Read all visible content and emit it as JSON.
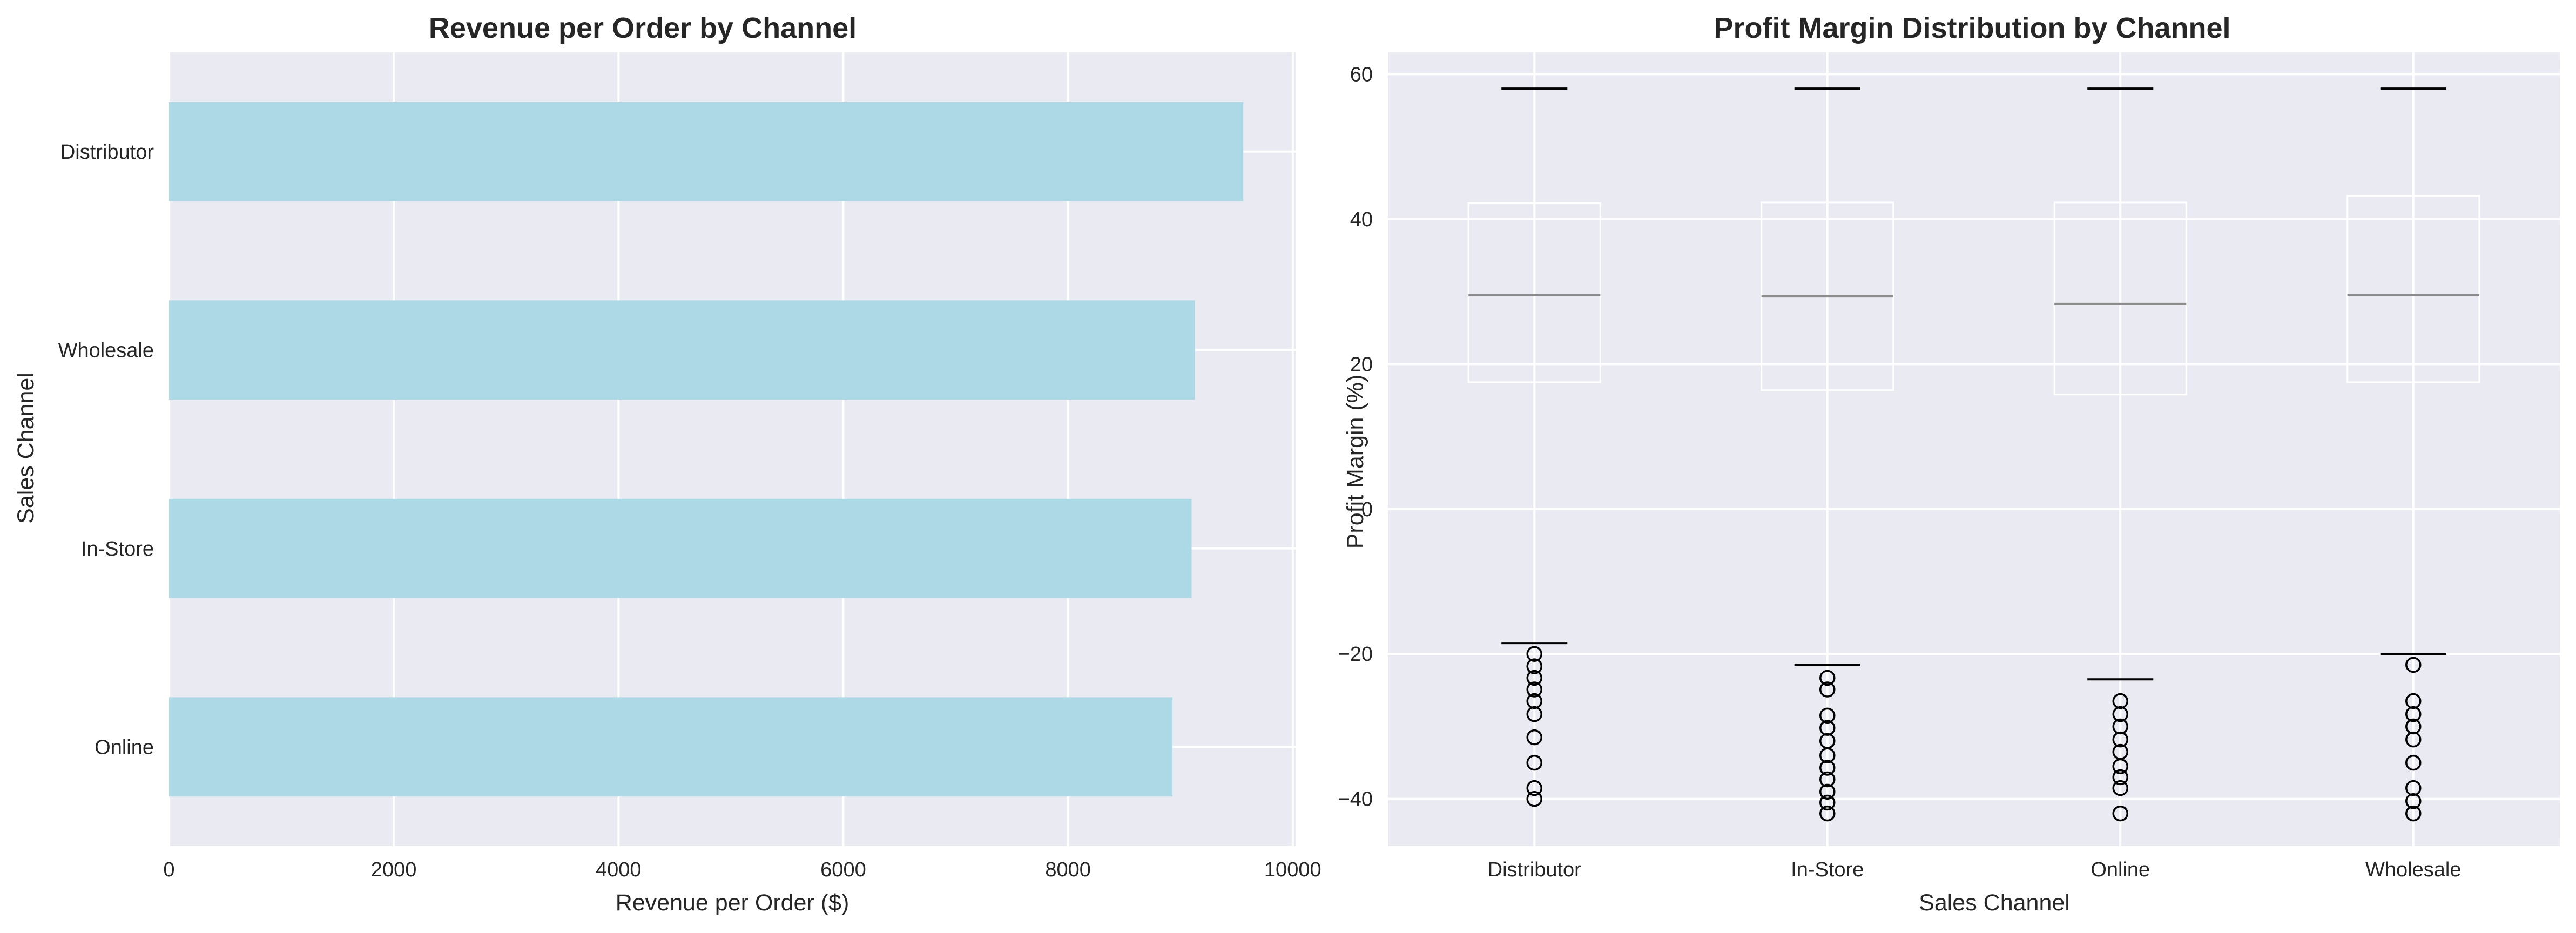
{
  "chart_data": [
    {
      "type": "bar",
      "orientation": "horizontal",
      "title": "Revenue per Order by Channel",
      "xlabel": "Revenue per Order ($)",
      "ylabel": "Sales Channel",
      "categories": [
        "Distributor",
        "Wholesale",
        "In-Store",
        "Online"
      ],
      "values": [
        9560,
        9130,
        9100,
        8930
      ],
      "xlim": [
        0,
        10030
      ],
      "xticks": [
        0,
        2000,
        4000,
        6000,
        8000,
        10000
      ],
      "xtick_labels": [
        "0",
        "2000",
        "4000",
        "6000",
        "8000",
        "10000"
      ],
      "grid": true,
      "bar_color": "#add8e6",
      "background": "#eaeaf2"
    },
    {
      "type": "box",
      "title": "Profit Margin Distribution by Channel",
      "xlabel": "Sales Channel",
      "ylabel": "Profit Margin (%)",
      "categories": [
        "Distributor",
        "In-Store",
        "Online",
        "Wholesale"
      ],
      "ylim": [
        -46.5,
        63
      ],
      "yticks": [
        -40,
        -20,
        0,
        20,
        40,
        60
      ],
      "ytick_labels": [
        "−40",
        "−20",
        "0",
        "20",
        "40",
        "60"
      ],
      "grid": true,
      "background": "#eaeaf2",
      "boxes": [
        {
          "name": "Distributor",
          "whisker_low": -18.5,
          "q1": 17.5,
          "median": 29.5,
          "q3": 42.2,
          "whisker_high": 58,
          "outliers": [
            -20.0,
            -21.7,
            -23.3,
            -24.9,
            -26.5,
            -28.3,
            -31.5,
            -35.0,
            -38.5,
            -40.0
          ]
        },
        {
          "name": "In-Store",
          "whisker_low": -21.5,
          "q1": 16.4,
          "median": 29.4,
          "q3": 42.3,
          "whisker_high": 58,
          "outliers": [
            -23.3,
            -24.9,
            -28.5,
            -30.2,
            -32.0,
            -34.0,
            -35.7,
            -37.3,
            -39.0,
            -40.5,
            -42.0
          ]
        },
        {
          "name": "Online",
          "whisker_low": -23.5,
          "q1": 15.8,
          "median": 28.3,
          "q3": 42.3,
          "whisker_high": 58,
          "outliers": [
            -26.5,
            -28.3,
            -30.0,
            -31.8,
            -33.5,
            -35.5,
            -37.0,
            -38.5,
            -42.0
          ]
        },
        {
          "name": "Wholesale",
          "whisker_low": -20.0,
          "q1": 17.5,
          "median": 29.5,
          "q3": 43.2,
          "whisker_high": 58,
          "outliers": [
            -21.5,
            -26.5,
            -28.3,
            -30.0,
            -31.8,
            -35.0,
            -38.5,
            -40.3,
            -42.0
          ]
        }
      ]
    }
  ]
}
